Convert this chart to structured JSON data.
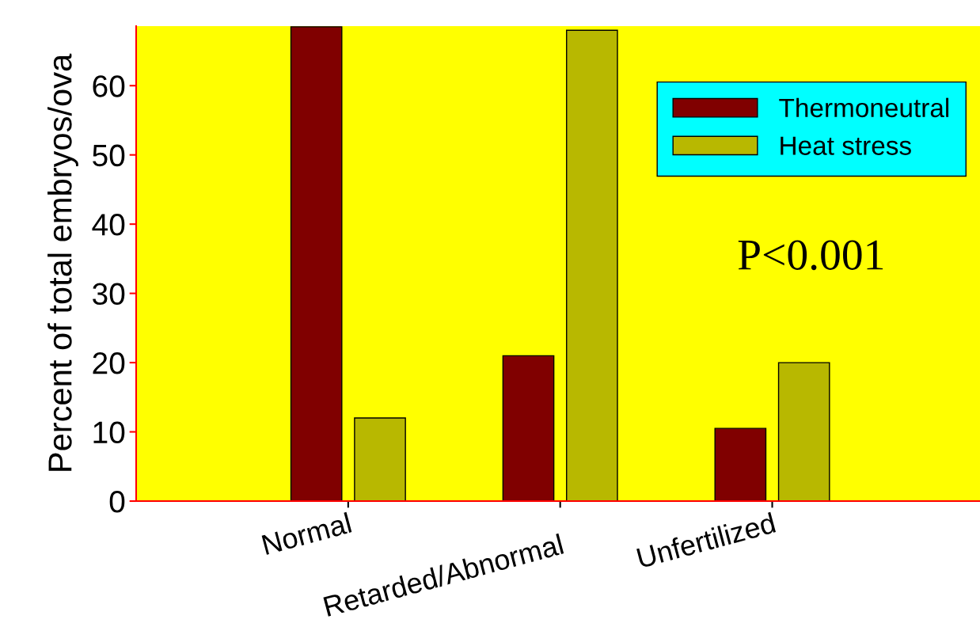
{
  "chart_data": {
    "type": "bar",
    "ylabel": "Percent of total embryos/ova",
    "categories": [
      "Normal",
      "Retarded/Abnormal",
      "Unfertilized"
    ],
    "series": [
      {
        "name": "Thermoneutral",
        "color": "#800000",
        "values": [
          68.5,
          21.0,
          10.5
        ]
      },
      {
        "name": "Heat stress",
        "color": "#b8b800",
        "values": [
          12.0,
          68.0,
          20.0
        ]
      }
    ],
    "ylim": [
      0,
      68.6
    ],
    "yticks": [
      0,
      10,
      20,
      30,
      40,
      50,
      60
    ],
    "annotations": [
      "P<0.001"
    ],
    "legend": "top right",
    "grid": false
  }
}
